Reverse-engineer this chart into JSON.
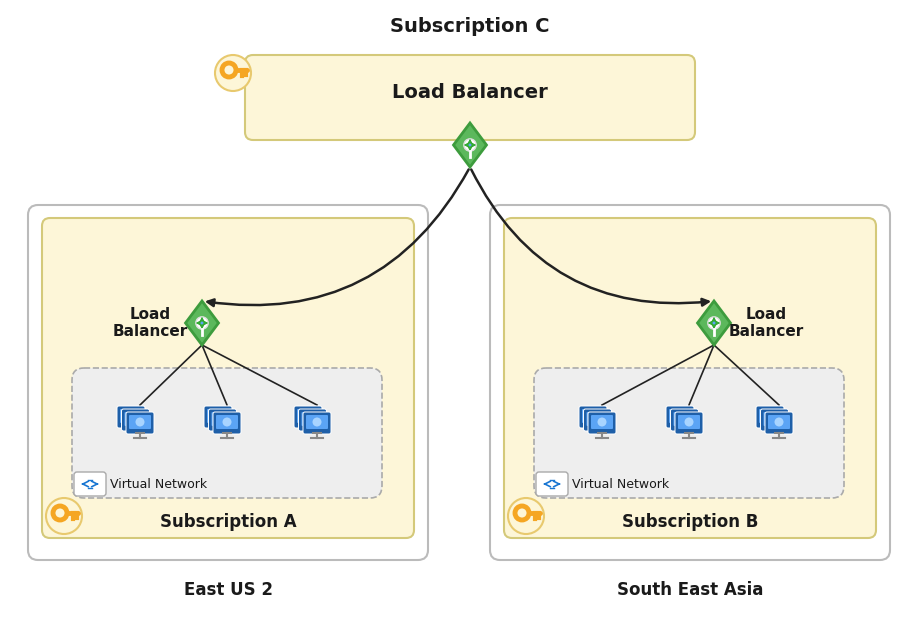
{
  "bg_color": "#ffffff",
  "sub_box_color": "#fdf6d8",
  "sub_border_color": "#d4c97a",
  "vnet_box_color": "#e8e8e8",
  "vnet_border_color": "#aaaaaa",
  "outer_box_color": "#ffffff",
  "outer_border_color": "#bbbbbb",
  "lb_green_outer": "#5cb85c",
  "lb_green_inner": "#3d9c3d",
  "lb_arrow_color": "#33cc33",
  "key_fill": "#f5a623",
  "key_bg": "#fdf6d8",
  "key_border": "#e8c96e",
  "arrow_color": "#222222",
  "vm_dark": "#1e5fa8",
  "vm_light": "#5ba4f5",
  "vm_screen": "#cce4ff",
  "vnet_icon_color": "#1976d2",
  "text_color": "#1a1a1a",
  "title_top": "Subscription C",
  "label_lb": "Load Balancer",
  "title_sub_a": "Subscription A",
  "title_sub_b": "Subscription B",
  "label_vnet": "Virtual Network",
  "label_east": "East US 2",
  "label_sea": "South East Asia",
  "load_balancer_left": "Load\nBalancer",
  "load_balancer_right": "Load\nBalancer"
}
